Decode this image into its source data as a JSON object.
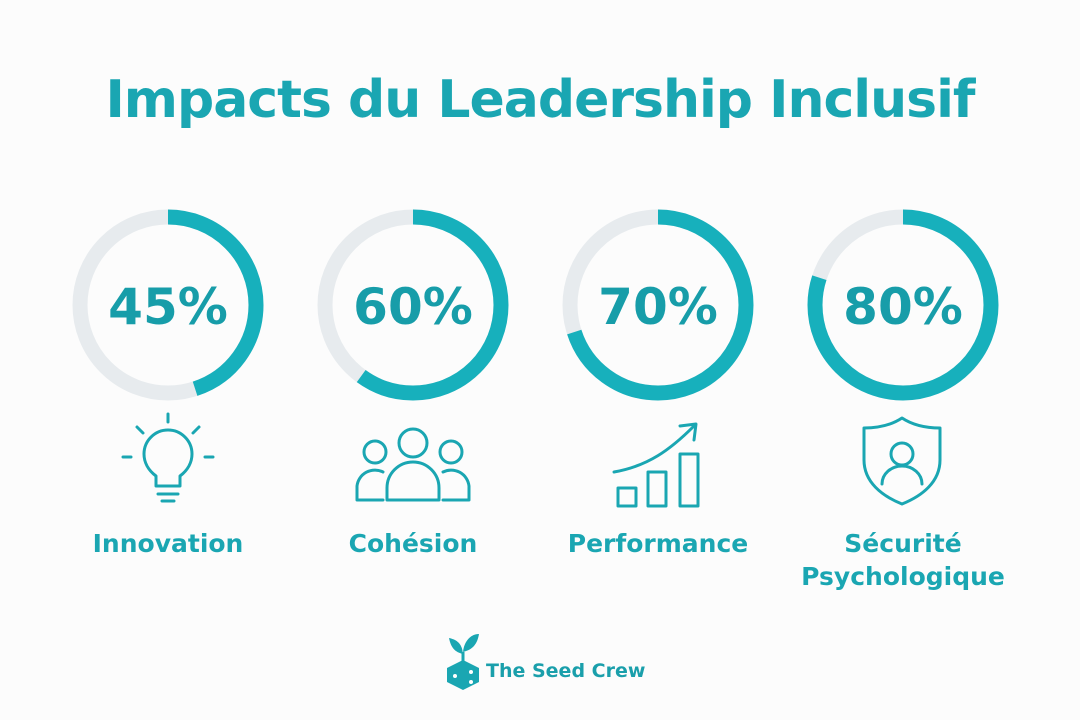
{
  "chart_data": {
    "type": "gauge",
    "title": "Impacts du Leadership Inclusif",
    "categories": [
      "Innovation",
      "Cohésion",
      "Performance",
      "Sécurité Psychologique"
    ],
    "values": [
      45,
      60,
      70,
      80
    ],
    "value_labels": [
      "45%",
      "60%",
      "70%",
      "80%"
    ],
    "ylim": [
      0,
      100
    ],
    "color": "#17b0bc",
    "track_color": "#e7ebee"
  },
  "footer": {
    "brand": "The Seed Crew"
  }
}
